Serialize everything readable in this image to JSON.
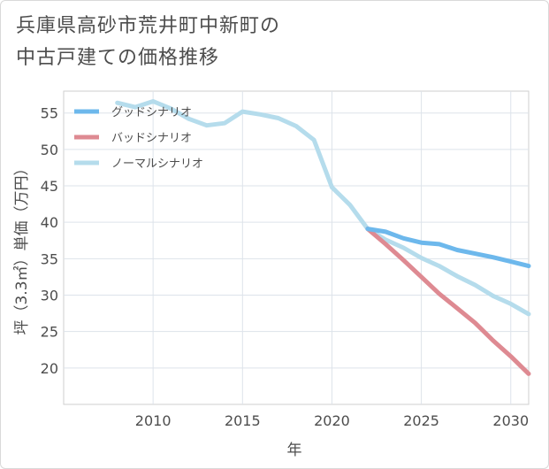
{
  "title_line1": "兵庫県高砂市荒井町中新町の",
  "title_line2": "中古戸建ての価格推移",
  "chart_data": {
    "type": "line",
    "xlabel": "年",
    "ylabel": "坪（3.3㎡）単価（万円）",
    "xlim": [
      2005,
      2031
    ],
    "ylim": [
      15,
      58
    ],
    "xticks": [
      2010,
      2015,
      2020,
      2025,
      2030
    ],
    "yticks": [
      20,
      25,
      30,
      35,
      40,
      45,
      50,
      55
    ],
    "grid": true,
    "legend_position": "top-left",
    "series": [
      {
        "name": "グッドシナリオ",
        "color": "#6db8ec",
        "x": [
          2022,
          2023,
          2024,
          2025,
          2026,
          2027,
          2028,
          2029,
          2030,
          2031
        ],
        "y": [
          39.1,
          38.7,
          37.8,
          37.2,
          37.0,
          36.2,
          35.7,
          35.2,
          34.6,
          34.0
        ]
      },
      {
        "name": "バッドシナリオ",
        "color": "#de8a92",
        "x": [
          2022,
          2023,
          2024,
          2025,
          2026,
          2027,
          2028,
          2029,
          2030,
          2031
        ],
        "y": [
          39.1,
          37.0,
          34.8,
          32.5,
          30.2,
          28.2,
          26.2,
          23.8,
          21.6,
          19.2
        ]
      },
      {
        "name": "ノーマルシナリオ",
        "color": "#b5dcec",
        "x": [
          2008,
          2009,
          2010,
          2011,
          2012,
          2013,
          2014,
          2015,
          2016,
          2017,
          2018,
          2019,
          2020,
          2021,
          2022,
          2023,
          2024,
          2025,
          2026,
          2027,
          2028,
          2029,
          2030,
          2031
        ],
        "y": [
          56.4,
          55.8,
          56.6,
          55.6,
          54.2,
          53.3,
          53.6,
          55.2,
          54.8,
          54.3,
          53.2,
          51.3,
          44.8,
          42.4,
          39.1,
          37.6,
          36.5,
          35.1,
          34.0,
          32.6,
          31.4,
          29.9,
          28.8,
          27.4
        ]
      }
    ]
  }
}
